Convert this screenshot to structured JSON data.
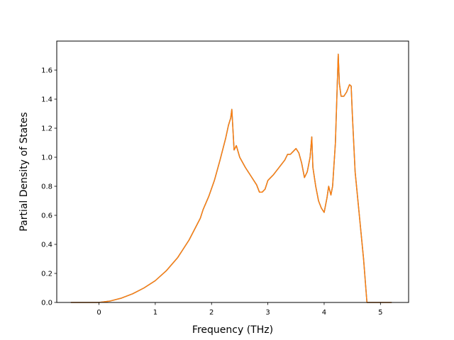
{
  "chart_data": {
    "type": "line",
    "title": "",
    "xlabel": "Frequency (THz)",
    "ylabel": "Partial Density of States",
    "xlim": [
      -0.75,
      5.5
    ],
    "ylim": [
      0.0,
      1.8
    ],
    "xticks": [
      "0",
      "1",
      "2",
      "3",
      "4",
      "5"
    ],
    "yticks": [
      "0.0",
      "0.2",
      "0.4",
      "0.6",
      "0.8",
      "1.0",
      "1.2",
      "1.4",
      "1.6"
    ],
    "grid": false,
    "legend": "none",
    "series": [
      {
        "color": "#1f77b4",
        "x": [
          -0.5,
          0.0,
          0.2,
          0.4,
          0.6,
          0.8,
          1.0,
          1.2,
          1.4,
          1.6,
          1.8,
          1.85,
          1.95,
          2.05,
          2.15,
          2.25,
          2.3,
          2.34,
          2.36,
          2.4,
          2.44,
          2.5,
          2.6,
          2.7,
          2.8,
          2.85,
          2.9,
          2.95,
          3.0,
          3.05,
          3.1,
          3.2,
          3.3,
          3.35,
          3.4,
          3.45,
          3.5,
          3.55,
          3.6,
          3.65,
          3.7,
          3.75,
          3.78,
          3.8,
          3.85,
          3.9,
          3.95,
          4.0,
          4.05,
          4.08,
          4.1,
          4.12,
          4.15,
          4.2,
          4.25,
          4.27,
          4.3,
          4.35,
          4.4,
          4.45,
          4.48,
          4.5,
          4.55,
          4.6,
          4.65,
          4.7,
          4.76,
          4.9,
          5.0,
          5.2
        ],
        "y": [
          0.0,
          0.0,
          0.01,
          0.03,
          0.06,
          0.1,
          0.15,
          0.22,
          0.31,
          0.43,
          0.58,
          0.64,
          0.73,
          0.84,
          0.98,
          1.13,
          1.22,
          1.27,
          1.33,
          1.05,
          1.08,
          1.0,
          0.93,
          0.87,
          0.81,
          0.76,
          0.76,
          0.78,
          0.84,
          0.86,
          0.88,
          0.93,
          0.98,
          1.02,
          1.02,
          1.04,
          1.06,
          1.03,
          0.96,
          0.86,
          0.9,
          1.0,
          1.14,
          0.93,
          0.8,
          0.7,
          0.65,
          0.62,
          0.72,
          0.8,
          0.77,
          0.74,
          0.8,
          1.1,
          1.71,
          1.51,
          1.42,
          1.42,
          1.45,
          1.5,
          1.49,
          1.3,
          0.9,
          0.7,
          0.5,
          0.3,
          0.0,
          0.0,
          0.0,
          0.0
        ]
      },
      {
        "color": "#ff7f0e",
        "x": [
          -0.5,
          0.0,
          0.2,
          0.4,
          0.6,
          0.8,
          1.0,
          1.2,
          1.4,
          1.6,
          1.8,
          1.85,
          1.95,
          2.05,
          2.15,
          2.25,
          2.3,
          2.34,
          2.36,
          2.4,
          2.44,
          2.5,
          2.6,
          2.7,
          2.8,
          2.85,
          2.9,
          2.95,
          3.0,
          3.05,
          3.1,
          3.2,
          3.3,
          3.35,
          3.4,
          3.45,
          3.5,
          3.55,
          3.6,
          3.65,
          3.7,
          3.75,
          3.78,
          3.8,
          3.85,
          3.9,
          3.95,
          4.0,
          4.05,
          4.08,
          4.1,
          4.12,
          4.15,
          4.2,
          4.25,
          4.27,
          4.3,
          4.35,
          4.4,
          4.45,
          4.48,
          4.5,
          4.55,
          4.6,
          4.65,
          4.7,
          4.76,
          4.9,
          5.0,
          5.2
        ],
        "y": [
          0.0,
          0.0,
          0.01,
          0.03,
          0.06,
          0.1,
          0.15,
          0.22,
          0.31,
          0.43,
          0.58,
          0.64,
          0.73,
          0.84,
          0.98,
          1.13,
          1.22,
          1.27,
          1.33,
          1.05,
          1.08,
          1.0,
          0.93,
          0.87,
          0.81,
          0.76,
          0.76,
          0.78,
          0.84,
          0.86,
          0.88,
          0.93,
          0.98,
          1.02,
          1.02,
          1.04,
          1.06,
          1.03,
          0.96,
          0.86,
          0.9,
          1.0,
          1.14,
          0.93,
          0.8,
          0.7,
          0.65,
          0.62,
          0.72,
          0.8,
          0.77,
          0.74,
          0.8,
          1.1,
          1.71,
          1.51,
          1.42,
          1.42,
          1.45,
          1.5,
          1.49,
          1.3,
          0.9,
          0.7,
          0.5,
          0.3,
          0.0,
          0.0,
          0.0,
          0.0
        ]
      }
    ]
  }
}
